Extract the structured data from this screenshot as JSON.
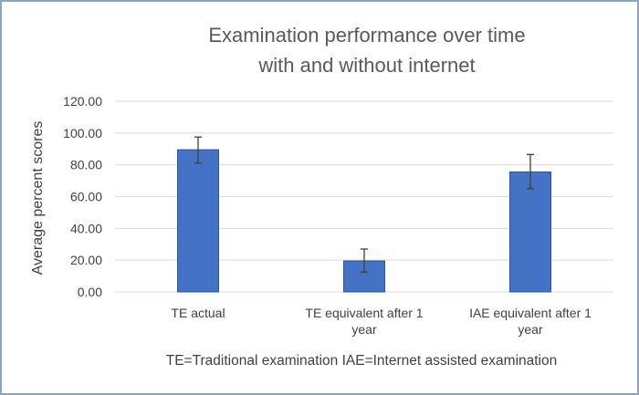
{
  "chart_data": {
    "type": "bar",
    "title_lines": [
      "Examination performance over time",
      "with and without internet"
    ],
    "categories": [
      [
        "TE actual"
      ],
      [
        "TE equivalent after 1",
        "year"
      ],
      [
        "IAE equivalent after 1",
        "year"
      ]
    ],
    "values": [
      89.5,
      19.5,
      75.5
    ],
    "error_bars": [
      {
        "low": 81.0,
        "high": 97.5
      },
      {
        "low": 12.5,
        "high": 27.0
      },
      {
        "low": 65.0,
        "high": 86.5
      }
    ],
    "ylabel": "Average percent scores",
    "xlabel": "",
    "ylim": [
      0,
      120
    ],
    "yticks": [
      0,
      20,
      40,
      60,
      80,
      100,
      120
    ],
    "ytick_labels": [
      "0.00",
      "20.00",
      "40.00",
      "60.00",
      "80.00",
      "100.00",
      "120.00"
    ],
    "grid": true,
    "legend": "none",
    "footnote": "TE=Traditional examination  IAE=Internet assisted examination",
    "colors": {
      "bar": "#4472c4",
      "bar_edge": "#2f5597",
      "grid": "#d9d9d9",
      "error_bar": "#404040",
      "frame": "#8aa4c8"
    }
  }
}
